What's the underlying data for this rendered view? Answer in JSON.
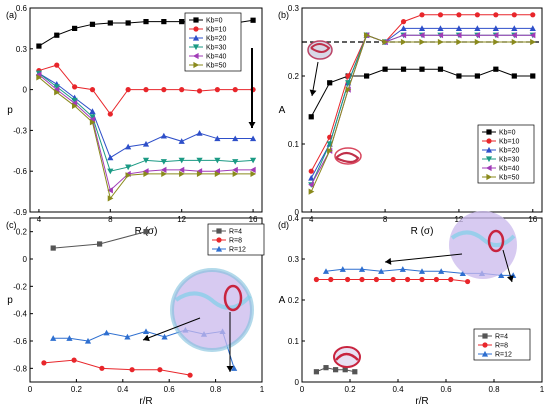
{
  "colors": {
    "k0": "#000000",
    "k10": "#e8262b",
    "k20": "#2e4fc9",
    "k30": "#1b9a84",
    "k40": "#a13bb7",
    "k50": "#8a8a1c",
    "r4": "#555555",
    "r8": "#e8262b",
    "r12": "#2e6fd0"
  },
  "chart_data": [
    {
      "panel": "(a)",
      "type": "line",
      "xlabel": "R (σ)",
      "ylabel": "p",
      "xlim": [
        3.5,
        16.5
      ],
      "ylim": [
        -0.9,
        0.6
      ],
      "xticks": [
        4,
        8,
        12,
        16
      ],
      "yticks": [
        -0.9,
        -0.6,
        -0.3,
        0.0,
        0.3,
        0.6
      ],
      "legend": "top-right",
      "series": [
        {
          "name": "Kb=0",
          "color_key": "k0",
          "marker": "square",
          "x": [
            4,
            5,
            6,
            7,
            8,
            9,
            10,
            11,
            12,
            13,
            14,
            15,
            16
          ],
          "y": [
            0.32,
            0.4,
            0.45,
            0.48,
            0.49,
            0.49,
            0.5,
            0.5,
            0.5,
            0.49,
            0.5,
            0.49,
            0.51
          ]
        },
        {
          "name": "Kb=10",
          "color_key": "k10",
          "marker": "circle",
          "x": [
            4,
            5,
            6,
            7,
            8,
            9,
            10,
            11,
            12,
            13,
            14,
            15,
            16
          ],
          "y": [
            0.14,
            0.18,
            0.02,
            0.0,
            -0.18,
            0.0,
            0.0,
            0.0,
            0.0,
            -0.01,
            0.0,
            0.0,
            0.0
          ]
        },
        {
          "name": "Kb=20",
          "color_key": "k20",
          "marker": "triangle-up",
          "x": [
            4,
            5,
            6,
            7,
            8,
            9,
            10,
            11,
            12,
            13,
            14,
            15,
            16
          ],
          "y": [
            0.12,
            0.04,
            -0.06,
            -0.16,
            -0.5,
            -0.42,
            -0.4,
            -0.34,
            -0.38,
            -0.32,
            -0.36,
            -0.36,
            -0.36
          ]
        },
        {
          "name": "Kb=30",
          "color_key": "k30",
          "marker": "triangle-down",
          "x": [
            4,
            5,
            6,
            7,
            8,
            9,
            10,
            11,
            12,
            13,
            14,
            15,
            16
          ],
          "y": [
            0.12,
            0.02,
            -0.08,
            -0.2,
            -0.6,
            -0.57,
            -0.52,
            -0.53,
            -0.52,
            -0.52,
            -0.52,
            -0.53,
            -0.52
          ]
        },
        {
          "name": "Kb=40",
          "color_key": "k40",
          "marker": "triangle-left",
          "x": [
            4,
            5,
            6,
            7,
            8,
            9,
            10,
            11,
            12,
            13,
            14,
            15,
            16
          ],
          "y": [
            0.11,
            0.0,
            -0.1,
            -0.22,
            -0.74,
            -0.62,
            -0.6,
            -0.59,
            -0.59,
            -0.6,
            -0.6,
            -0.59,
            -0.59
          ]
        },
        {
          "name": "Kb=50",
          "color_key": "k50",
          "marker": "triangle-right",
          "x": [
            4,
            5,
            6,
            7,
            8,
            9,
            10,
            11,
            12,
            13,
            14,
            15,
            16
          ],
          "y": [
            0.09,
            -0.02,
            -0.12,
            -0.24,
            -0.8,
            -0.63,
            -0.62,
            -0.62,
            -0.62,
            -0.62,
            -0.62,
            -0.62,
            -0.62
          ]
        }
      ]
    },
    {
      "panel": "(b)",
      "type": "line",
      "xlabel": "R (σ)",
      "ylabel": "A",
      "xlim": [
        3.5,
        16.5
      ],
      "ylim": [
        0.0,
        0.3
      ],
      "xticks": [
        4,
        8,
        12,
        16
      ],
      "yticks": [
        0.0,
        0.1,
        0.2,
        0.3
      ],
      "dashed_reference_y": 0.25,
      "legend": "bottom-right",
      "series": [
        {
          "name": "Kb=0",
          "color_key": "k0",
          "marker": "square",
          "x": [
            4,
            5,
            6,
            7,
            8,
            9,
            10,
            11,
            12,
            13,
            14,
            15,
            16
          ],
          "y": [
            0.14,
            0.19,
            0.2,
            0.2,
            0.21,
            0.21,
            0.21,
            0.21,
            0.2,
            0.2,
            0.21,
            0.2,
            0.2
          ]
        },
        {
          "name": "Kb=10",
          "color_key": "k10",
          "marker": "circle",
          "x": [
            4,
            5,
            6,
            7,
            8,
            9,
            10,
            11,
            12,
            13,
            14,
            15,
            16
          ],
          "y": [
            0.06,
            0.11,
            0.2,
            0.26,
            0.25,
            0.28,
            0.29,
            0.29,
            0.29,
            0.29,
            0.29,
            0.29,
            0.29
          ]
        },
        {
          "name": "Kb=20",
          "color_key": "k20",
          "marker": "triangle-up",
          "x": [
            4,
            5,
            6,
            7,
            8,
            9,
            10,
            11,
            12,
            13,
            14,
            15,
            16
          ],
          "y": [
            0.05,
            0.1,
            0.19,
            0.26,
            0.25,
            0.27,
            0.27,
            0.27,
            0.27,
            0.27,
            0.27,
            0.27,
            0.27
          ]
        },
        {
          "name": "Kb=30",
          "color_key": "k30",
          "marker": "triangle-down",
          "x": [
            4,
            5,
            6,
            7,
            8,
            9,
            10,
            11,
            12,
            13,
            14,
            15,
            16
          ],
          "y": [
            0.04,
            0.1,
            0.19,
            0.26,
            0.25,
            0.26,
            0.26,
            0.26,
            0.26,
            0.26,
            0.26,
            0.26,
            0.26
          ]
        },
        {
          "name": "Kb=40",
          "color_key": "k40",
          "marker": "triangle-left",
          "x": [
            4,
            5,
            6,
            7,
            8,
            9,
            10,
            11,
            12,
            13,
            14,
            15,
            16
          ],
          "y": [
            0.04,
            0.09,
            0.18,
            0.26,
            0.25,
            0.26,
            0.26,
            0.26,
            0.26,
            0.26,
            0.26,
            0.26,
            0.26
          ]
        },
        {
          "name": "Kb=50",
          "color_key": "k50",
          "marker": "triangle-right",
          "x": [
            4,
            5,
            6,
            7,
            8,
            9,
            10,
            11,
            12,
            13,
            14,
            15,
            16
          ],
          "y": [
            0.03,
            0.09,
            0.18,
            0.26,
            0.25,
            0.25,
            0.25,
            0.25,
            0.25,
            0.25,
            0.25,
            0.25,
            0.25
          ]
        }
      ]
    },
    {
      "panel": "(c)",
      "type": "line",
      "xlabel": "r/R",
      "ylabel": "p",
      "xlim": [
        0.0,
        1.0
      ],
      "ylim": [
        -0.9,
        0.3
      ],
      "xticks": [
        0.0,
        0.2,
        0.4,
        0.6,
        0.8,
        1.0
      ],
      "yticks": [
        -0.8,
        -0.6,
        -0.4,
        -0.2,
        0.0,
        0.2
      ],
      "legend": "top-right",
      "series": [
        {
          "name": "R=4",
          "color_key": "r4",
          "marker": "square",
          "x": [
            0.1,
            0.3,
            0.5
          ],
          "y": [
            0.08,
            0.11,
            0.2
          ]
        },
        {
          "name": "R=8",
          "color_key": "r8",
          "marker": "circle",
          "x": [
            0.06,
            0.19,
            0.31,
            0.44,
            0.56,
            0.69
          ],
          "y": [
            -0.76,
            -0.74,
            -0.8,
            -0.81,
            -0.81,
            -0.85
          ]
        },
        {
          "name": "R=12",
          "color_key": "r12",
          "marker": "triangle-up",
          "x": [
            0.1,
            0.17,
            0.25,
            0.33,
            0.42,
            0.5,
            0.58,
            0.67,
            0.75,
            0.83,
            0.88
          ],
          "y": [
            -0.58,
            -0.58,
            -0.6,
            -0.54,
            -0.57,
            -0.53,
            -0.57,
            -0.52,
            -0.55,
            -0.53,
            -0.8
          ]
        }
      ]
    },
    {
      "panel": "(d)",
      "type": "line",
      "xlabel": "r/R",
      "ylabel": "A",
      "xlim": [
        0.0,
        1.0
      ],
      "ylim": [
        0.0,
        0.4
      ],
      "xticks": [
        0.0,
        0.2,
        0.4,
        0.6,
        0.8,
        1.0
      ],
      "yticks": [
        0.0,
        0.1,
        0.2,
        0.3,
        0.4
      ],
      "legend": "bottom-right",
      "series": [
        {
          "name": "R=4",
          "color_key": "r4",
          "marker": "square",
          "x": [
            0.06,
            0.1,
            0.14,
            0.18,
            0.22
          ],
          "y": [
            0.025,
            0.035,
            0.03,
            0.03,
            0.025
          ]
        },
        {
          "name": "R=8",
          "color_key": "r8",
          "marker": "circle",
          "x": [
            0.06,
            0.12,
            0.19,
            0.25,
            0.31,
            0.38,
            0.44,
            0.5,
            0.56,
            0.62,
            0.69
          ],
          "y": [
            0.25,
            0.25,
            0.25,
            0.25,
            0.25,
            0.25,
            0.25,
            0.25,
            0.25,
            0.25,
            0.245
          ]
        },
        {
          "name": "R=12",
          "color_key": "r12",
          "marker": "triangle-up",
          "x": [
            0.1,
            0.17,
            0.25,
            0.33,
            0.42,
            0.5,
            0.58,
            0.67,
            0.75,
            0.83,
            0.88
          ],
          "y": [
            0.27,
            0.275,
            0.275,
            0.27,
            0.275,
            0.27,
            0.27,
            0.265,
            0.265,
            0.26,
            0.26
          ]
        }
      ]
    }
  ]
}
